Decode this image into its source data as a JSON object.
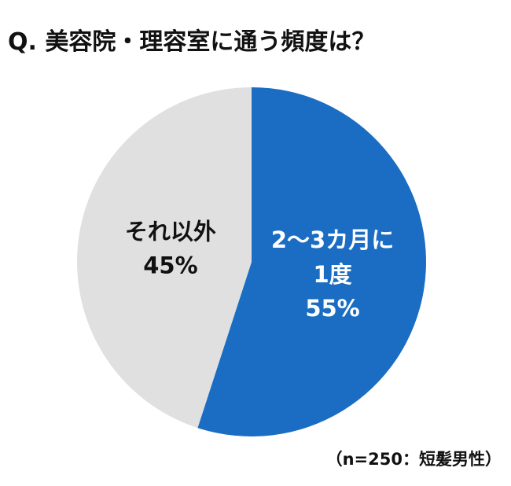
{
  "chart_data": {
    "type": "pie",
    "title": "Q. 美容院・理容室に通う頻度は？",
    "note": "（n=250：短髪男性）",
    "categories": [
      "2～3カ月に1度",
      "それ以外"
    ],
    "values": [
      55,
      45
    ],
    "value_labels": [
      "55%",
      "45%"
    ],
    "colors": [
      "#1a6dc2",
      "#e0e0e0"
    ]
  }
}
